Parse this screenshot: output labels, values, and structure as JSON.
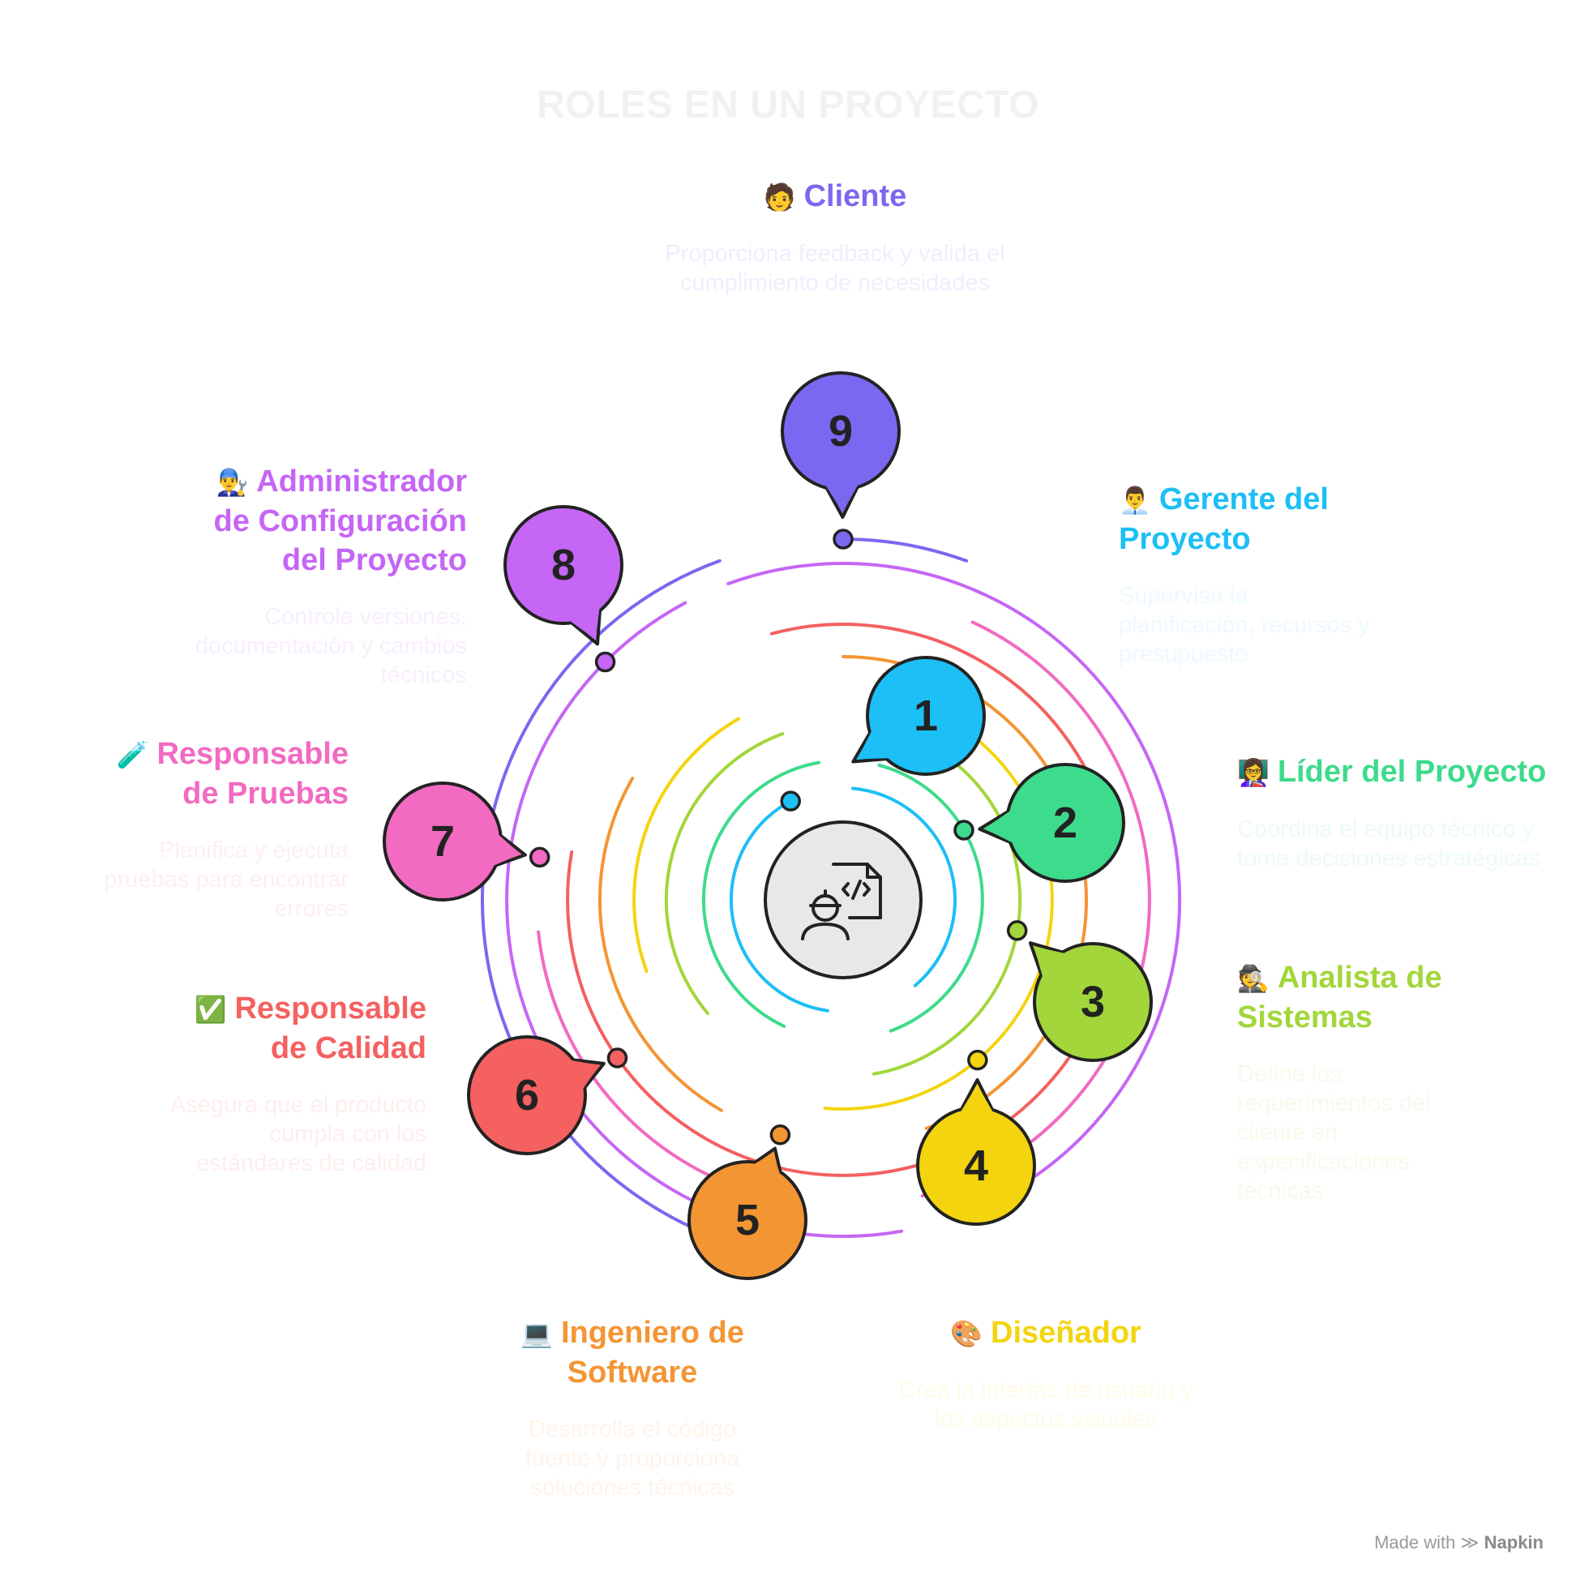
{
  "title": "ROLES EN UN PROYECTO",
  "roles": [
    {
      "number": "1",
      "title": "Gerente del Proyecto",
      "description": "Supervisa la planificación, recursos y presupuesto",
      "color": "#1cbff6",
      "desc_color": "#eef9fe",
      "icon": "manager-emoji"
    },
    {
      "number": "2",
      "title": "Líder del Proyecto",
      "description": "Coordina el equipo técnico y toma decisiones estratégicas",
      "color": "#3ddb8c",
      "desc_color": "#ecfbf3",
      "icon": "teacher-emoji"
    },
    {
      "number": "3",
      "title": "Analista de Sistemas",
      "description": "Define los requerimientos del cliente en especificaciones técnicas",
      "color": "#a2d63a",
      "desc_color": "#f5fbea",
      "icon": "detective-emoji"
    },
    {
      "number": "4",
      "title": "Diseñador",
      "description": "Crea la interfaz de usuario y los aspectos visuales",
      "color": "#f4d40f",
      "desc_color": "#fefbe6",
      "icon": "palette-emoji"
    },
    {
      "number": "5",
      "title": "Ingeniero de Software",
      "description": "Desarrolla el código fuente y proporciona soluciones técnicas",
      "color": "#f49534",
      "desc_color": "#fef4ea",
      "icon": "laptop-emoji"
    },
    {
      "number": "6",
      "title": "Responsable de Calidad",
      "description": "Asegura que el producto cumpla con los estándares de calidad",
      "color": "#f56060",
      "desc_color": "#feeeee",
      "icon": "check-mark-emoji"
    },
    {
      "number": "7",
      "title": "Responsable de Pruebas",
      "description": "Planifica y ejecuta pruebas para encontrar errores",
      "color": "#f26ac1",
      "desc_color": "#fdeef7",
      "icon": "test-tube-emoji"
    },
    {
      "number": "8",
      "title": "Administrador de Configuración del Proyecto",
      "description": "Controla versiones, documentación y cambios técnicos",
      "color": "#c566f5",
      "desc_color": "#f8eefd",
      "icon": "mechanic-emoji"
    },
    {
      "number": "9",
      "title": "Cliente",
      "description": "Proporciona feedback y valida el cumplimiento de necesidades",
      "color": "#7b68f0",
      "desc_color": "#f0eefd",
      "icon": "person-emoji"
    }
  ],
  "footer": {
    "made_with": "Made with",
    "brand": "Napkin"
  }
}
